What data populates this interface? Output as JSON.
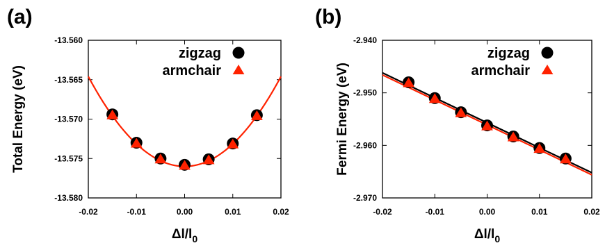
{
  "chart_data": [
    {
      "type": "scatter",
      "panel_label": "(a)",
      "xlabel": "Δl/l",
      "xlabel_sub": "0",
      "ylabel": "Total Energy (eV)",
      "xlim": [
        -0.02,
        0.02
      ],
      "ylim": [
        -13.58,
        -13.56
      ],
      "xticks": [
        -0.02,
        -0.01,
        0.0,
        0.01,
        0.02
      ],
      "xtick_labels": [
        "-0.02",
        "-0.01",
        "0.00",
        "0.01",
        "0.02"
      ],
      "yticks": [
        -13.58,
        -13.575,
        -13.57,
        -13.565,
        -13.56
      ],
      "ytick_labels": [
        "-13.580",
        "-13.575",
        "-13.570",
        "-13.565",
        "-13.560"
      ],
      "grid": false,
      "legend_position": "top-right",
      "series": [
        {
          "name": "zigzag",
          "marker": "circle",
          "color": "#000000",
          "x": [
            -0.015,
            -0.01,
            -0.005,
            0.0,
            0.005,
            0.01,
            0.015
          ],
          "y": [
            -13.5694,
            -13.573,
            -13.575,
            -13.5758,
            -13.5751,
            -13.5731,
            -13.5695
          ]
        },
        {
          "name": "armchair",
          "marker": "triangle",
          "color": "#ff2200",
          "x": [
            -0.015,
            -0.01,
            -0.005,
            0.0,
            0.005,
            0.01,
            0.015
          ],
          "y": [
            -13.5694,
            -13.573,
            -13.575,
            -13.5758,
            -13.5751,
            -13.5731,
            -13.5695
          ]
        }
      ],
      "fits": [
        {
          "kind": "quadratic",
          "color": "#ff2200",
          "x0": 0.0,
          "y0": -13.576,
          "a": 28.5
        }
      ]
    },
    {
      "type": "scatter",
      "panel_label": "(b)",
      "xlabel": "Δl/l",
      "xlabel_sub": "0",
      "ylabel": "Fermi Energy (eV)",
      "xlim": [
        -0.02,
        0.02
      ],
      "ylim": [
        -2.97,
        -2.94
      ],
      "xticks": [
        -0.02,
        -0.01,
        0.0,
        0.01,
        0.02
      ],
      "xtick_labels": [
        "-0.02",
        "-0.01",
        "0.00",
        "0.01",
        "0.02"
      ],
      "yticks": [
        -2.97,
        -2.96,
        -2.95,
        -2.94
      ],
      "ytick_labels": [
        "-2.970",
        "-2.960",
        "-2.950",
        "-2.940"
      ],
      "grid": false,
      "legend_position": "top-right",
      "series": [
        {
          "name": "zigzag",
          "marker": "circle",
          "color": "#000000",
          "x": [
            -0.015,
            -0.01,
            -0.005,
            0.0,
            0.005,
            0.01,
            0.015
          ],
          "y": [
            -2.948,
            -2.951,
            -2.9537,
            -2.9562,
            -2.9583,
            -2.9605,
            -2.9625
          ]
        },
        {
          "name": "armchair",
          "marker": "triangle",
          "color": "#ff2200",
          "x": [
            -0.015,
            -0.01,
            -0.005,
            0.0,
            0.005,
            0.01,
            0.015
          ],
          "y": [
            -2.948,
            -2.951,
            -2.9537,
            -2.9562,
            -2.9583,
            -2.9605,
            -2.9625
          ]
        }
      ],
      "fits": [
        {
          "kind": "linear",
          "color": "#000000",
          "x": [
            -0.02,
            0.02
          ],
          "y": [
            -2.9462,
            -2.9652
          ]
        },
        {
          "kind": "linear",
          "color": "#ff2200",
          "x": [
            -0.02,
            0.02
          ],
          "y": [
            -2.9466,
            -2.9656
          ]
        }
      ]
    }
  ]
}
